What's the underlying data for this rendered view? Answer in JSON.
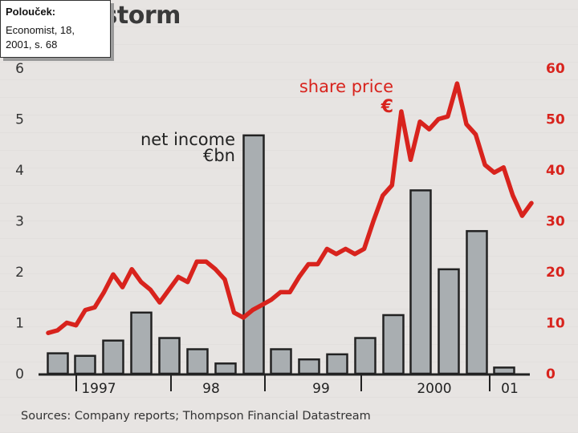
{
  "caption": {
    "title": "Polouček:",
    "line1": "Economist, 18,",
    "line2": "2001, s. 68"
  },
  "colors": {
    "bar_fill": "#a9aeb1",
    "bar_stroke": "#222222",
    "line": "#d8231d",
    "left_axis": "#333333",
    "right_axis": "#d8231d"
  },
  "chart_data": {
    "type": "bar+line",
    "title": "ical storm",
    "source": "Sources: Company reports; Thompson Financial Datastream",
    "x_tick_labels": [
      "1997",
      "98",
      "99",
      "2000",
      "01"
    ],
    "series": [
      {
        "name": "net income €bn",
        "name_lines": [
          "net income",
          "€bn"
        ],
        "type": "bar",
        "axis": "left",
        "values": [
          0.4,
          0.35,
          0.65,
          1.2,
          0.7,
          0.48,
          0.2,
          4.68,
          0.48,
          0.28,
          0.38,
          0.7,
          1.15,
          3.6,
          2.05,
          2.8,
          0.12
        ]
      },
      {
        "name": "share price €",
        "name_lines": [
          "share price",
          "€"
        ],
        "type": "line",
        "axis": "right",
        "values": [
          8,
          8.5,
          10,
          9.5,
          12.5,
          13,
          16,
          19.5,
          17,
          20.5,
          18,
          16.5,
          14,
          16.5,
          19,
          18,
          22,
          22,
          20.5,
          18.5,
          12,
          11,
          12.5,
          13.5,
          14.5,
          16,
          16,
          19,
          21.5,
          21.5,
          24.5,
          23.5,
          24.5,
          23.5,
          24.5,
          30,
          35,
          37,
          51.5,
          42,
          49.5,
          48,
          50,
          50.5,
          57,
          49,
          47,
          41,
          39.5,
          40.5,
          35,
          31,
          33.5
        ]
      }
    ],
    "left_axis": {
      "min": 0,
      "max": 6,
      "ticks": [
        0,
        1,
        2,
        3,
        4,
        5,
        6
      ]
    },
    "right_axis": {
      "min": 0,
      "max": 60,
      "ticks": [
        0,
        10,
        20,
        30,
        40,
        50,
        60
      ]
    },
    "grid": false,
    "legend": "inline labels"
  }
}
